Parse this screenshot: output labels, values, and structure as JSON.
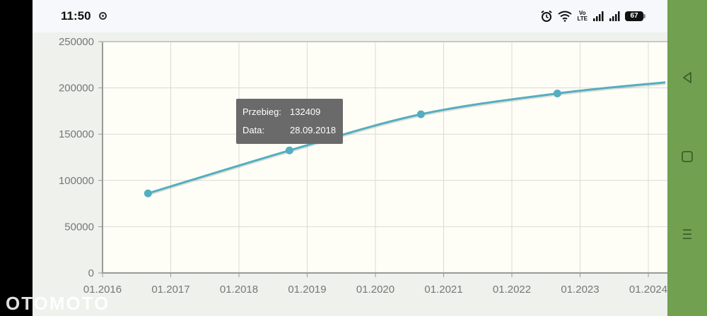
{
  "status_bar": {
    "time": "11:50",
    "network_label_top": "Vo",
    "network_label_bottom": "LTE",
    "battery_level": "67"
  },
  "chart_data": {
    "type": "line",
    "title": "",
    "xlabel": "",
    "ylabel": "",
    "x_ticks": [
      "01.2016",
      "01.2017",
      "01.2018",
      "01.2019",
      "01.2020",
      "01.2021",
      "01.2022",
      "01.2023",
      "01.2024"
    ],
    "y_ticks": [
      "250000",
      "200000",
      "150000",
      "100000",
      "50000",
      "0"
    ],
    "ylim": [
      0,
      250000
    ],
    "xlim": [
      "2016-01-01",
      "2024-04-01"
    ],
    "grid": true,
    "series": [
      {
        "color": "#53aec0",
        "points": [
          {
            "x": "2016-09",
            "y": 86000
          },
          {
            "x": "2018-09-28",
            "y": 132409
          },
          {
            "x": "2020-09",
            "y": 171500
          },
          {
            "x": "2022-09",
            "y": 194000
          },
          {
            "x": "2024-04",
            "y": 206000
          }
        ]
      }
    ]
  },
  "tooltip": {
    "mileage_label": "Przebieg:",
    "mileage_value": "132409",
    "date_label": "Data:",
    "date_value": "28.09.2018"
  },
  "watermark": "OTOMOTO",
  "colors": {
    "line": "#53aec0",
    "plot_background": "#fefef6",
    "nav_bar": "#71a150",
    "tooltip": "#6a6a6a"
  }
}
